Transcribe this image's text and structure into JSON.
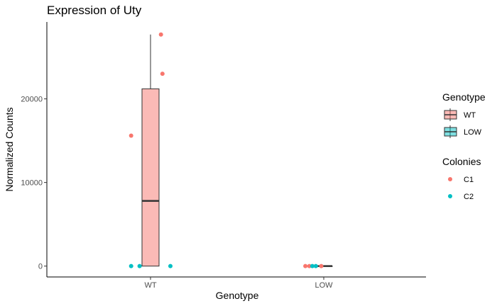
{
  "chart_data": {
    "type": "boxplot",
    "title": "Expression of Uty",
    "xlabel": "Genotype",
    "ylabel": "Normalized Counts",
    "categories": [
      "WT",
      "LOW"
    ],
    "ylim": [
      -1300,
      29200
    ],
    "yticks": [
      0,
      10000,
      20000
    ],
    "ytick_labels": [
      "0",
      "10000",
      "20000"
    ],
    "boxes": [
      {
        "group": "WT",
        "min": 0,
        "q1": 0,
        "median": 7800,
        "q3": 21200,
        "max": 27700,
        "fill": "#F8766D"
      },
      {
        "group": "LOW",
        "min": 0,
        "q1": 0,
        "median": 0,
        "q3": 0,
        "max": 0,
        "fill": "#00BFC4"
      }
    ],
    "points": [
      {
        "group": "WT",
        "x_offset": -0.39,
        "y": 15600,
        "colony": "C1"
      },
      {
        "group": "WT",
        "x_offset": 0.21,
        "y": 27700,
        "colony": "C1"
      },
      {
        "group": "WT",
        "x_offset": 0.24,
        "y": 23000,
        "colony": "C1"
      },
      {
        "group": "WT",
        "x_offset": -0.39,
        "y": 0,
        "colony": "C2"
      },
      {
        "group": "WT",
        "x_offset": -0.22,
        "y": 0,
        "colony": "C2"
      },
      {
        "group": "WT",
        "x_offset": 0.4,
        "y": 0,
        "colony": "C2"
      },
      {
        "group": "LOW",
        "x_offset": -0.37,
        "y": 0,
        "colony": "C1"
      },
      {
        "group": "LOW",
        "x_offset": -0.29,
        "y": 0,
        "colony": "C1"
      },
      {
        "group": "LOW",
        "x_offset": -0.05,
        "y": 0,
        "colony": "C1"
      },
      {
        "group": "LOW",
        "x_offset": -0.23,
        "y": 0,
        "colony": "C2"
      },
      {
        "group": "LOW",
        "x_offset": -0.16,
        "y": 0,
        "colony": "C2"
      }
    ],
    "legends": [
      {
        "title": "Genotype",
        "kind": "box",
        "entries": [
          {
            "label": "WT",
            "color": "#F8766D"
          },
          {
            "label": "LOW",
            "color": "#00BFC4"
          }
        ]
      },
      {
        "title": "Colonies",
        "kind": "point",
        "entries": [
          {
            "label": "C1",
            "color": "#F8766D"
          },
          {
            "label": "C2",
            "color": "#00BFC4"
          }
        ]
      }
    ],
    "legend_position": "right",
    "grid": false
  }
}
